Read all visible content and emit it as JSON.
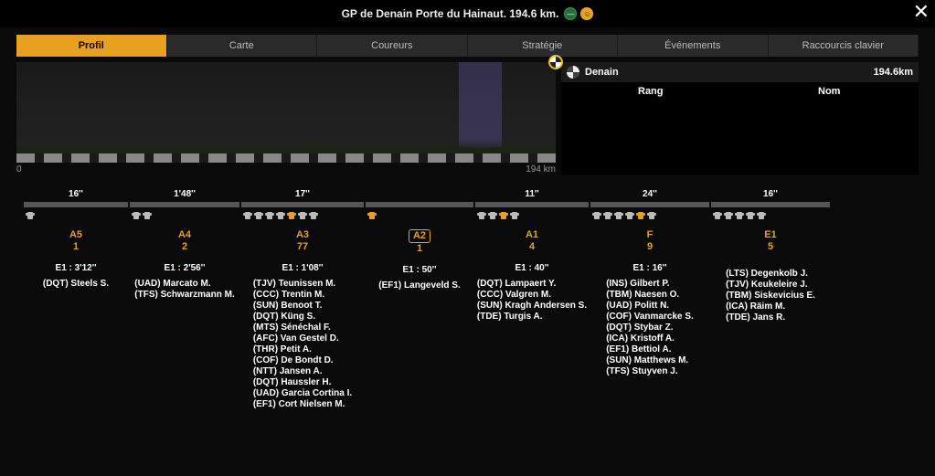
{
  "header": {
    "title": "GP de Denain Porte du Hainaut. 194.6 km.",
    "close": "✕"
  },
  "tabs": [
    {
      "label": "Profil",
      "active": true
    },
    {
      "label": "Carte",
      "active": false
    },
    {
      "label": "Coureurs",
      "active": false
    },
    {
      "label": "Stratégie",
      "active": false
    },
    {
      "label": "Événements",
      "active": false
    },
    {
      "label": "Raccourcis clavier",
      "active": false
    }
  ],
  "scale": {
    "start": "0",
    "end": "194 km"
  },
  "rightPanel": {
    "title": "Denain",
    "distance": "194.6km",
    "cols": [
      "Rang",
      "Nom"
    ]
  },
  "gapBars": [
    {
      "w": 114,
      "label": "16''"
    },
    {
      "w": 120,
      "label": "1'48''"
    },
    {
      "w": 134,
      "label": "17''"
    },
    {
      "w": 118,
      "label": ""
    },
    {
      "w": 124,
      "label": "11''"
    },
    {
      "w": 130,
      "label": "24''"
    },
    {
      "w": 130,
      "label": "16''"
    }
  ],
  "groups": [
    {
      "w": 114,
      "code": "A5",
      "count": "1",
      "time": "E1 : 3'12''",
      "highlighted": false,
      "jerseys": [
        "#bbb"
      ],
      "riders": [
        "(DQT) Steels S."
      ]
    },
    {
      "w": 120,
      "code": "A4",
      "count": "2",
      "time": "E1 : 2'56''",
      "highlighted": false,
      "jerseys": [
        "#bbb",
        "#bbb"
      ],
      "riders": [
        "(UAD) Marcato M.",
        "(TFS) Schwarzmann M."
      ]
    },
    {
      "w": 134,
      "code": "A3",
      "count": "77",
      "time": "E1 : 1'08''",
      "highlighted": false,
      "jerseys": [
        "#bbb",
        "#bbb",
        "#bbb",
        "#bbb",
        "#e8a020",
        "#bbb",
        "#bbb"
      ],
      "riders": [
        "(TJV) Teunissen M.",
        "(CCC) Trentin M.",
        "(SUN) Benoot T.",
        "(DQT) Küng S.",
        "(MTS) Sénéchal F.",
        "(AFC) Van Gestel D.",
        "(THR) Petit A.",
        "(COF) De Bondt D.",
        "(NTT) Jansen A.",
        "(DQT) Haussler H.",
        "(UAD) Garcia Cortina I.",
        "(EF1) Cort Nielsen M."
      ]
    },
    {
      "w": 118,
      "code": "A2",
      "count": "1",
      "time": "E1 : 50''",
      "highlighted": true,
      "jerseys": [
        "#e8a020"
      ],
      "riders": [
        "(EF1) Langeveld S."
      ]
    },
    {
      "w": 124,
      "code": "A1",
      "count": "4",
      "time": "E1 : 40''",
      "highlighted": false,
      "jerseys": [
        "#bbb",
        "#bbb",
        "#e8a020",
        "#bbb"
      ],
      "riders": [
        "(DQT) Lampaert Y.",
        "(CCC) Valgren M.",
        "(SUN) Kragh Andersen S.",
        "(TDE) Turgis A."
      ]
    },
    {
      "w": 130,
      "code": "F",
      "count": "9",
      "time": "E1 : 16''",
      "highlighted": false,
      "jerseys": [
        "#bbb",
        "#bbb",
        "#bbb",
        "#bbb",
        "#e8a020",
        "#bbb"
      ],
      "riders": [
        "(INS) Gilbert P.",
        "(TBM) Naesen O.",
        "(UAD) Politt N.",
        "(COF) Vanmarcke S.",
        "(DQT) Stybar Z.",
        "(ICA) Kristoff A.",
        "(EF1) Bettiol A.",
        "(SUN) Matthews M.",
        "(TFS) Stuyven J."
      ]
    },
    {
      "w": 130,
      "code": "E1",
      "count": "5",
      "time": "",
      "highlighted": false,
      "jerseys": [
        "#bbb",
        "#bbb",
        "#bbb",
        "#bbb",
        "#bbb"
      ],
      "riders": [
        "(LTS) Degenkolb J.",
        "(TJV) Keukeleire J.",
        "(TBM) Siskevicius E.",
        "(ICA) Räim M.",
        "(TDE) Jans R."
      ]
    }
  ]
}
